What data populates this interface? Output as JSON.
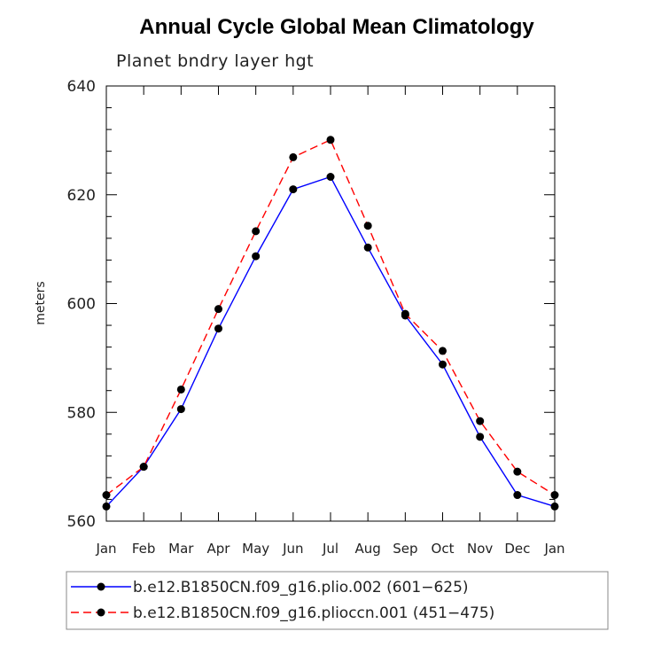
{
  "chart_data": {
    "type": "line",
    "title": "Annual Cycle Global Mean Climatology",
    "subtitle": "Planet bndry layer hgt",
    "xlabel": "",
    "ylabel": "meters",
    "categories": [
      "Jan",
      "Feb",
      "Mar",
      "Apr",
      "May",
      "Jun",
      "Jul",
      "Aug",
      "Sep",
      "Oct",
      "Nov",
      "Dec",
      "Jan"
    ],
    "ylim": [
      560,
      640
    ],
    "yticks": [
      "560",
      "580",
      "600",
      "620",
      "640"
    ],
    "series": [
      {
        "name": "b.e12.B1850CN.f09_g16.plio.002 (601−625)",
        "color": "#0000ff",
        "dash": "solid",
        "values": [
          562.7,
          570.0,
          580.6,
          595.4,
          608.7,
          621.0,
          623.3,
          610.3,
          597.8,
          588.8,
          575.5,
          564.8,
          562.7
        ]
      },
      {
        "name": "b.e12.B1850CN.f09_g16.plioccn.001 (451−475)",
        "color": "#ff0000",
        "dash": "dashed",
        "values": [
          564.8,
          570.0,
          584.2,
          599.0,
          613.3,
          626.9,
          630.1,
          614.3,
          598.1,
          591.3,
          578.4,
          569.1,
          564.8
        ]
      }
    ]
  }
}
